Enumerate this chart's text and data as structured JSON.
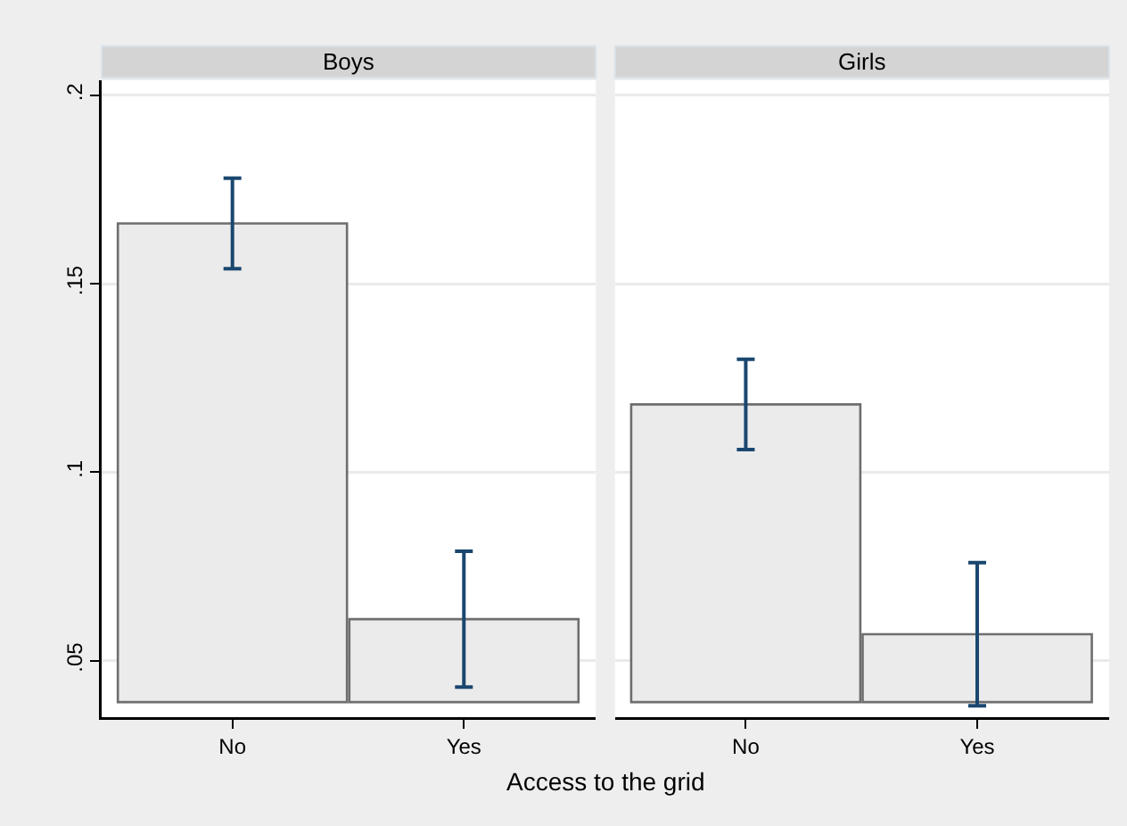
{
  "chart_data": [
    {
      "type": "bar",
      "title": "Boys",
      "xlabel": "Access to the grid",
      "categories": [
        "No",
        "Yes"
      ],
      "values": [
        0.127,
        0.022
      ],
      "base": [
        0.039,
        0.039
      ],
      "errors": [
        0.012,
        0.018
      ],
      "color": "#ebebeb",
      "ylim": [
        0.035,
        0.204
      ],
      "yticks": [
        {
          "value": 0.05,
          "label": ".05"
        },
        {
          "value": 0.1,
          "label": ".1"
        },
        {
          "value": 0.15,
          "label": ".15"
        },
        {
          "value": 0.2,
          "label": ".2"
        }
      ],
      "grid": "y"
    },
    {
      "type": "bar",
      "title": "Girls",
      "categories": [
        "No",
        "Yes"
      ],
      "values": [
        0.079,
        0.018
      ],
      "base": [
        0.039,
        0.039
      ],
      "errors": [
        0.012,
        0.019
      ],
      "color": "#ebebeb",
      "ylim": [
        0.035,
        0.204
      ],
      "yticks": [
        {
          "value": 0.05,
          "label": null
        },
        {
          "value": 0.1,
          "label": null
        },
        {
          "value": 0.15,
          "label": null
        },
        {
          "value": 0.2,
          "label": null
        }
      ],
      "grid": "y",
      "tick_labels": "x"
    }
  ]
}
